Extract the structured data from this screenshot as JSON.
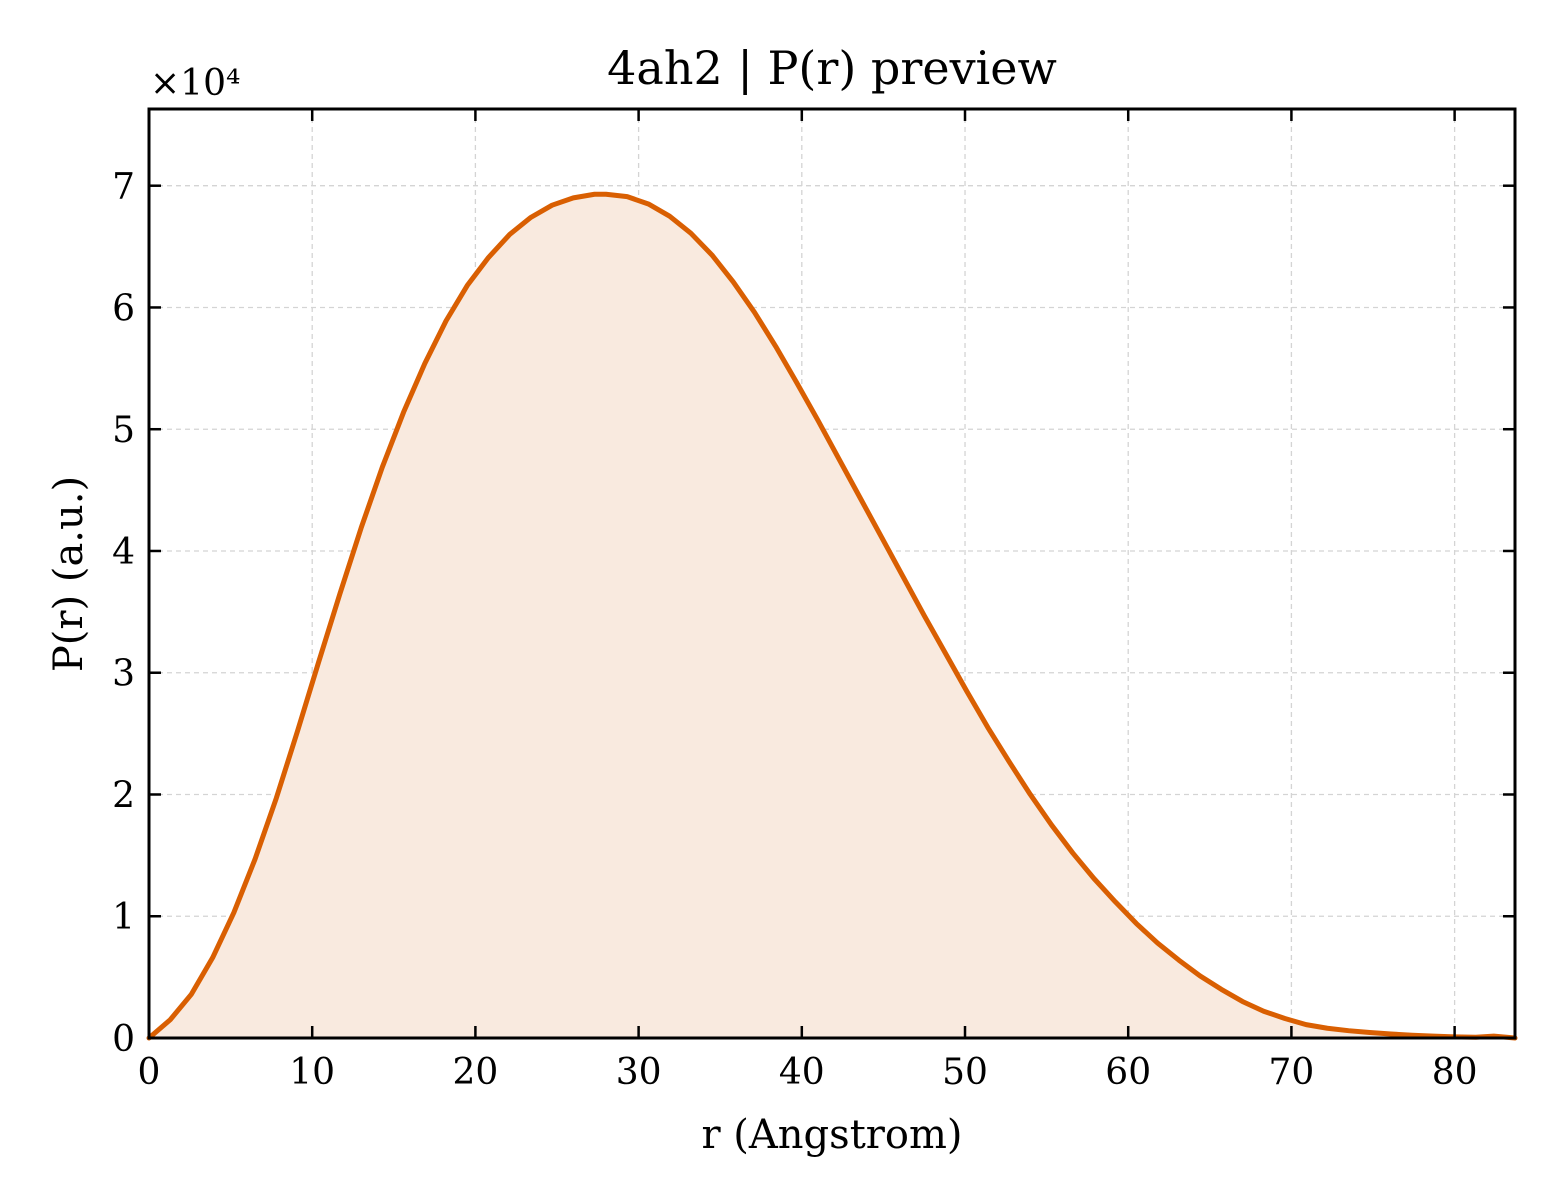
{
  "chart_data": {
    "type": "area",
    "title": "4ah2 | P(r) preview",
    "xlabel": "r (Angstrom)",
    "ylabel": "P(r) (a.u.)",
    "y_multiplier_label": "×10⁴",
    "y_scale_factor": 10000,
    "xlim": [
      0,
      83.7
    ],
    "ylim": [
      0,
      76300
    ],
    "x_ticks": [
      0,
      10,
      20,
      30,
      40,
      50,
      60,
      70,
      80
    ],
    "x_tick_labels": [
      "0",
      "10",
      "20",
      "30",
      "40",
      "50",
      "60",
      "70",
      "80"
    ],
    "y_ticks": [
      0,
      10000,
      20000,
      30000,
      40000,
      50000,
      60000,
      70000
    ],
    "y_tick_labels": [
      "0",
      "1",
      "2",
      "3",
      "4",
      "5",
      "6",
      "7"
    ],
    "grid": true,
    "series": [
      {
        "line_color": "#d95f02",
        "fill_color": "#f9eadf",
        "x": [
          0,
          1.3,
          2.6,
          3.9,
          5.2,
          6.5,
          7.8,
          9.1,
          10.4,
          11.7,
          13.0,
          14.3,
          15.6,
          16.9,
          18.2,
          19.5,
          20.8,
          22.1,
          23.4,
          24.7,
          26.0,
          27.3,
          28.0,
          29.3,
          30.6,
          31.9,
          33.2,
          34.5,
          35.8,
          37.1,
          38.4,
          39.7,
          41.0,
          42.3,
          43.6,
          44.9,
          46.2,
          47.5,
          48.8,
          50.1,
          51.4,
          52.7,
          54.0,
          55.3,
          56.6,
          57.9,
          59.2,
          60.5,
          61.8,
          63.1,
          64.4,
          65.7,
          67.0,
          68.3,
          69.6,
          70.9,
          72.2,
          73.5,
          74.8,
          76.1,
          77.4,
          78.7,
          80.0,
          81.3,
          82.4,
          83.7
        ],
        "y": [
          0,
          1500,
          3600,
          6600,
          10300,
          14700,
          19700,
          25200,
          30900,
          36500,
          41900,
          46900,
          51400,
          55400,
          58900,
          61800,
          64100,
          66000,
          67400,
          68400,
          69000,
          69300,
          69300,
          69100,
          68500,
          67500,
          66100,
          64300,
          62100,
          59600,
          56800,
          53800,
          50700,
          47500,
          44300,
          41100,
          37900,
          34700,
          31600,
          28500,
          25500,
          22700,
          20000,
          17500,
          15200,
          13100,
          11200,
          9400,
          7800,
          6400,
          5100,
          4000,
          3000,
          2200,
          1600,
          1100,
          800,
          600,
          450,
          330,
          230,
          150,
          90,
          60,
          150,
          0
        ]
      }
    ]
  }
}
